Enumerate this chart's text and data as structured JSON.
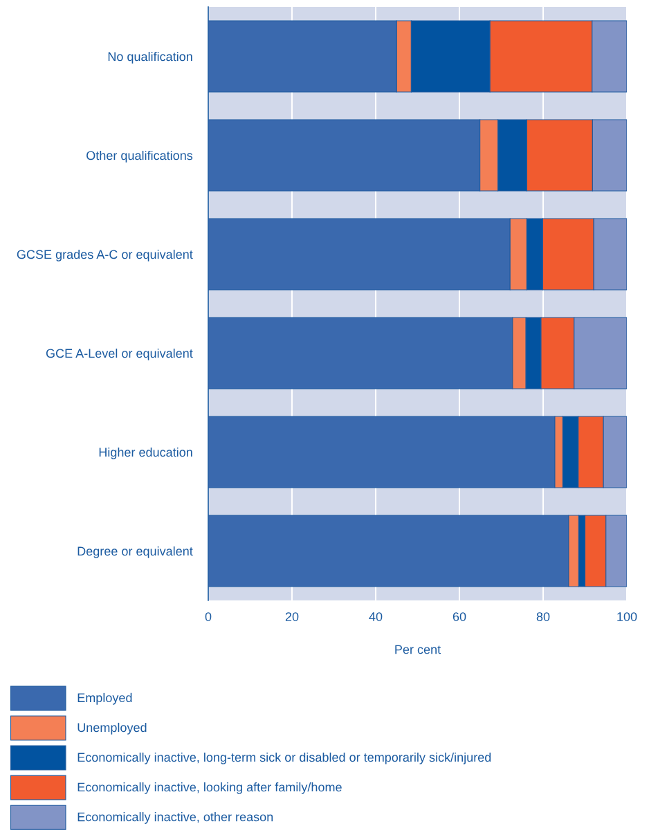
{
  "chart_data": {
    "type": "bar",
    "orientation": "horizontal",
    "stacked": true,
    "categories": [
      "No qualification",
      "Other qualifications",
      "GCSE grades A-C or equivalent",
      "GCE A-Level or equivalent",
      "Higher education",
      "Degree or equivalent"
    ],
    "series": [
      {
        "name": "Employed",
        "color": "#3a69ae",
        "values": [
          45.0,
          64.9,
          72.1,
          72.7,
          82.8,
          86.1
        ]
      },
      {
        "name": "Unemployed",
        "color": "#f47f55",
        "values": [
          3.5,
          4.3,
          4.0,
          3.2,
          1.9,
          2.4
        ]
      },
      {
        "name": "Economically inactive, long-term sick or disabled or temporarily sick/injured",
        "color": "#0253a0",
        "values": [
          18.8,
          6.9,
          3.8,
          3.6,
          3.7,
          1.5
        ]
      },
      {
        "name": "Economically inactive, looking after family/home",
        "color": "#f15b2f",
        "values": [
          24.4,
          15.7,
          12.2,
          7.9,
          6.0,
          5.0
        ]
      },
      {
        "name": "Economically inactive, other reason",
        "color": "#8294c6",
        "values": [
          8.3,
          8.2,
          7.9,
          12.6,
          5.6,
          5.0
        ]
      }
    ],
    "xlabel": "Per cent",
    "xlim": [
      0,
      100
    ],
    "xticks": [
      0,
      20,
      40,
      60,
      80,
      100
    ],
    "grid": "x",
    "legend": "bottom"
  }
}
